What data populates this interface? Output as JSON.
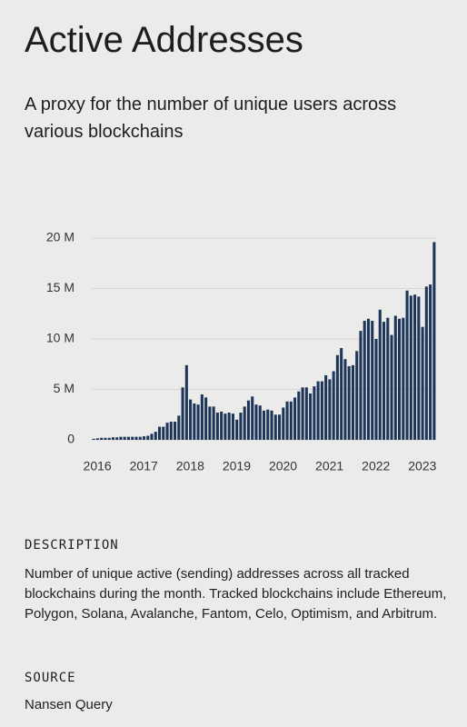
{
  "header": {
    "title": "Active Addresses",
    "subtitle": "A proxy for the number of unique users across various blockchains"
  },
  "chart_data": {
    "type": "bar",
    "color": "#1c3558",
    "grid": true,
    "categories": [
      "2016",
      null,
      null,
      null,
      null,
      null,
      null,
      null,
      null,
      null,
      null,
      null,
      "2017",
      null,
      null,
      null,
      null,
      null,
      null,
      null,
      null,
      null,
      null,
      null,
      "2018",
      null,
      null,
      null,
      null,
      null,
      null,
      null,
      null,
      null,
      null,
      null,
      "2019",
      null,
      null,
      null,
      null,
      null,
      null,
      null,
      null,
      null,
      null,
      null,
      "2020",
      null,
      null,
      null,
      null,
      null,
      null,
      null,
      null,
      null,
      null,
      null,
      "2021",
      null,
      null,
      null,
      null,
      null,
      null,
      null,
      null,
      null,
      null,
      null,
      "2022",
      null,
      null,
      null,
      null,
      null,
      null,
      null,
      null,
      null,
      null,
      null,
      "2023",
      null,
      null,
      null,
      null
    ],
    "values": [
      0.1,
      0.15,
      0.2,
      0.2,
      0.2,
      0.25,
      0.25,
      0.3,
      0.3,
      0.3,
      0.3,
      0.3,
      0.3,
      0.35,
      0.4,
      0.6,
      0.8,
      1.3,
      1.3,
      1.7,
      1.8,
      1.8,
      2.4,
      5.2,
      7.4,
      4.0,
      3.6,
      3.5,
      4.5,
      4.2,
      3.3,
      3.3,
      2.7,
      2.8,
      2.6,
      2.7,
      2.6,
      2.0,
      2.7,
      3.3,
      3.9,
      4.3,
      3.5,
      3.4,
      2.9,
      3.0,
      2.9,
      2.5,
      2.5,
      3.2,
      3.8,
      3.8,
      4.2,
      4.8,
      5.2,
      5.2,
      4.6,
      5.3,
      5.8,
      5.8,
      6.4,
      6.0,
      6.8,
      8.4,
      9.1,
      8.0,
      7.3,
      7.4,
      8.8,
      10.8,
      11.8,
      12.0,
      11.8,
      10.0,
      12.9,
      11.7,
      12.1,
      10.4,
      12.3,
      12.0,
      12.1,
      14.8,
      14.3,
      14.4,
      14.2,
      11.2,
      15.2,
      15.4,
      19.6
    ],
    "ylim": [
      0,
      20
    ],
    "yticks": [
      0,
      {
        "value": 5,
        "label": "5 M"
      },
      {
        "value": 10,
        "label": "10 M"
      },
      {
        "value": 15,
        "label": "15 M"
      },
      {
        "value": 20,
        "label": "20 M"
      }
    ]
  },
  "description": {
    "heading": "DESCRIPTION",
    "text": "Number of unique active (sending) addresses across all tracked blockchains during the month. Tracked blockchains include Ethereum, Polygon, Solana, Avalanche, Fantom, Celo, Optimism, and Arbitrum."
  },
  "source": {
    "heading": "SOURCE",
    "text": "Nansen Query"
  }
}
